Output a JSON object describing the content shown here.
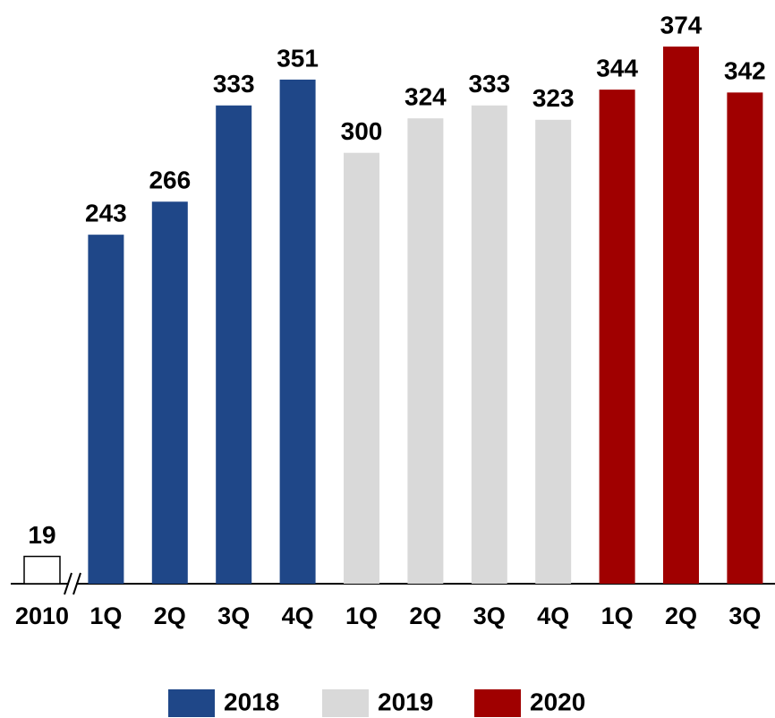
{
  "chart_data": {
    "type": "bar",
    "categories": [
      "2010",
      "1Q",
      "2Q",
      "3Q",
      "4Q",
      "1Q",
      "2Q",
      "3Q",
      "4Q",
      "1Q",
      "2Q",
      "3Q"
    ],
    "values": [
      19,
      243,
      266,
      333,
      351,
      300,
      324,
      333,
      323,
      344,
      374,
      342
    ],
    "colors": [
      "#ffffff",
      "#1f4788",
      "#1f4788",
      "#1f4788",
      "#1f4788",
      "#d9d9d9",
      "#d9d9d9",
      "#d9d9d9",
      "#d9d9d9",
      "#a00000",
      "#a00000",
      "#a00000"
    ],
    "ylim": [
      0,
      374
    ],
    "legend": [
      {
        "name": "2018",
        "color": "#1f4788"
      },
      {
        "name": "2019",
        "color": "#d9d9d9"
      },
      {
        "name": "2020",
        "color": "#a00000"
      }
    ]
  }
}
